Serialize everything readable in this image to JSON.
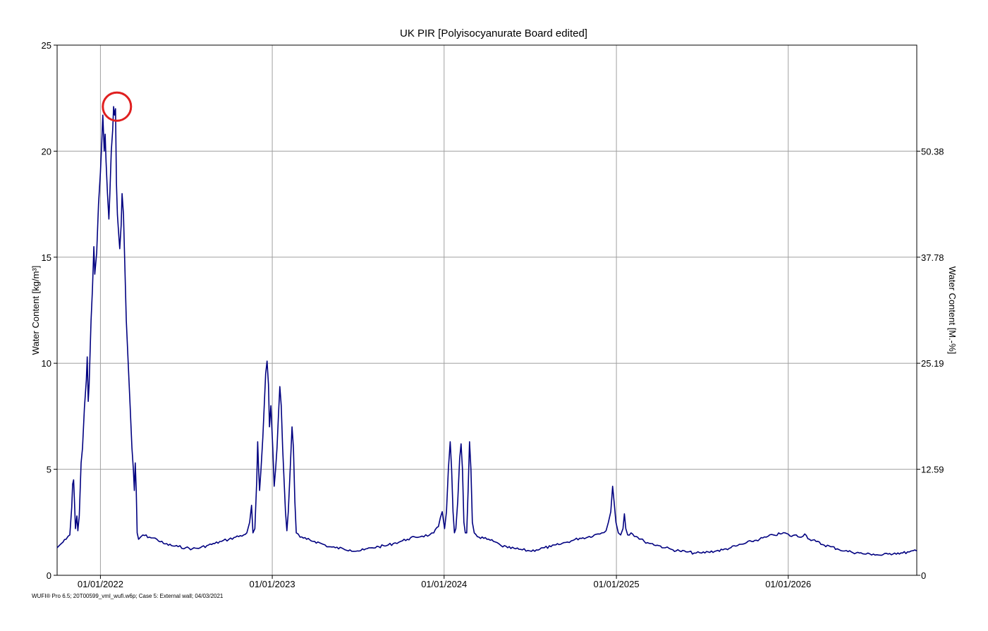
{
  "chart_data": {
    "type": "line",
    "title": "UK PIR [Polyisocyanurate Board edited]",
    "ylabel": "Water Content [kg/m³]",
    "y2label": "Water Content [M.-%]",
    "ylim": [
      0,
      25
    ],
    "yticks": [
      0,
      5,
      10,
      15,
      20,
      25
    ],
    "y2ticks": [
      "0",
      "12.59",
      "25.19",
      "37.78",
      "50.38"
    ],
    "xrange": [
      "2021-10-01",
      "2026-10-01"
    ],
    "xticks": [
      {
        "date": "2022-01-01",
        "label": "01/01/2022"
      },
      {
        "date": "2023-01-01",
        "label": "01/01/2023"
      },
      {
        "date": "2024-01-01",
        "label": "01/01/2024"
      },
      {
        "date": "2025-01-01",
        "label": "01/01/2025"
      },
      {
        "date": "2026-01-01",
        "label": "01/01/2026"
      }
    ],
    "grid": true,
    "line_color": "#000080",
    "annotation": {
      "type": "circle",
      "color": "#e02020",
      "at": {
        "x": "2022-02-05",
        "y": 22.1
      }
    },
    "footer": "WUFI® Pro 6.5; 20T00599_vml_wufi.w6p; Case 5: External wall; 04/03/2021",
    "series": [
      {
        "points": [
          [
            "2021-10-01",
            1.3
          ],
          [
            "2021-10-10",
            1.5
          ],
          [
            "2021-10-20",
            1.7
          ],
          [
            "2021-10-28",
            1.9
          ],
          [
            "2021-11-01",
            3.2
          ],
          [
            "2021-11-03",
            4.3
          ],
          [
            "2021-11-05",
            4.5
          ],
          [
            "2021-11-07",
            3.4
          ],
          [
            "2021-11-09",
            2.2
          ],
          [
            "2021-11-12",
            2.8
          ],
          [
            "2021-11-14",
            2.1
          ],
          [
            "2021-11-17",
            2.8
          ],
          [
            "2021-11-21",
            5.3
          ],
          [
            "2021-11-24",
            6.0
          ],
          [
            "2021-11-28",
            7.9
          ],
          [
            "2021-12-02",
            9.2
          ],
          [
            "2021-12-04",
            10.3
          ],
          [
            "2021-12-06",
            8.2
          ],
          [
            "2021-12-08",
            9.0
          ],
          [
            "2021-12-12",
            12.0
          ],
          [
            "2021-12-15",
            13.5
          ],
          [
            "2021-12-18",
            15.5
          ],
          [
            "2021-12-20",
            14.2
          ],
          [
            "2021-12-24",
            15.2
          ],
          [
            "2021-12-28",
            17.5
          ],
          [
            "2022-01-01",
            19.0
          ],
          [
            "2022-01-04",
            20.5
          ],
          [
            "2022-01-06",
            21.7
          ],
          [
            "2022-01-09",
            20.0
          ],
          [
            "2022-01-11",
            20.8
          ],
          [
            "2022-01-13",
            19.5
          ],
          [
            "2022-01-16",
            18.0
          ],
          [
            "2022-01-19",
            16.8
          ],
          [
            "2022-01-21",
            18.0
          ],
          [
            "2022-01-24",
            20.0
          ],
          [
            "2022-01-27",
            21.0
          ],
          [
            "2022-01-29",
            22.1
          ],
          [
            "2022-01-31",
            21.7
          ],
          [
            "2022-02-02",
            22.0
          ],
          [
            "2022-02-04",
            18.5
          ],
          [
            "2022-02-06",
            17.0
          ],
          [
            "2022-02-09",
            16.0
          ],
          [
            "2022-02-11",
            15.4
          ],
          [
            "2022-02-14",
            16.5
          ],
          [
            "2022-02-16",
            18.0
          ],
          [
            "2022-02-19",
            17.0
          ],
          [
            "2022-02-22",
            14.5
          ],
          [
            "2022-02-25",
            12.0
          ],
          [
            "2022-03-01",
            10.0
          ],
          [
            "2022-03-05",
            8.0
          ],
          [
            "2022-03-09",
            6.0
          ],
          [
            "2022-03-12",
            5.0
          ],
          [
            "2022-03-14",
            4.0
          ],
          [
            "2022-03-16",
            5.3
          ],
          [
            "2022-03-18",
            4.0
          ],
          [
            "2022-03-20",
            2.0
          ],
          [
            "2022-03-23",
            1.7
          ],
          [
            "2022-04-01",
            1.9
          ],
          [
            "2022-04-15",
            1.8
          ],
          [
            "2022-05-01",
            1.7
          ],
          [
            "2022-05-15",
            1.5
          ],
          [
            "2022-06-01",
            1.4
          ],
          [
            "2022-06-15",
            1.35
          ],
          [
            "2022-07-01",
            1.3
          ],
          [
            "2022-07-15",
            1.25
          ],
          [
            "2022-08-01",
            1.3
          ],
          [
            "2022-08-15",
            1.4
          ],
          [
            "2022-09-01",
            1.5
          ],
          [
            "2022-09-15",
            1.6
          ],
          [
            "2022-10-01",
            1.7
          ],
          [
            "2022-10-15",
            1.8
          ],
          [
            "2022-11-01",
            1.9
          ],
          [
            "2022-11-08",
            2.0
          ],
          [
            "2022-11-14",
            2.5
          ],
          [
            "2022-11-18",
            3.3
          ],
          [
            "2022-11-21",
            2.0
          ],
          [
            "2022-11-25",
            2.2
          ],
          [
            "2022-11-29",
            4.5
          ],
          [
            "2022-12-01",
            6.3
          ],
          [
            "2022-12-03",
            5.0
          ],
          [
            "2022-12-05",
            4.0
          ],
          [
            "2022-12-08",
            5.0
          ],
          [
            "2022-12-12",
            6.5
          ],
          [
            "2022-12-15",
            8.0
          ],
          [
            "2022-12-18",
            9.5
          ],
          [
            "2022-12-21",
            10.1
          ],
          [
            "2022-12-24",
            9.0
          ],
          [
            "2022-12-26",
            7.0
          ],
          [
            "2022-12-29",
            8.0
          ],
          [
            "2023-01-02",
            6.0
          ],
          [
            "2023-01-05",
            4.2
          ],
          [
            "2023-01-08",
            5.0
          ],
          [
            "2023-01-11",
            6.0
          ],
          [
            "2023-01-14",
            7.5
          ],
          [
            "2023-01-17",
            8.9
          ],
          [
            "2023-01-20",
            8.0
          ],
          [
            "2023-01-23",
            6.0
          ],
          [
            "2023-01-26",
            4.5
          ],
          [
            "2023-01-29",
            3.0
          ],
          [
            "2023-02-01",
            2.1
          ],
          [
            "2023-02-04",
            3.0
          ],
          [
            "2023-02-08",
            5.0
          ],
          [
            "2023-02-12",
            7.0
          ],
          [
            "2023-02-15",
            6.0
          ],
          [
            "2023-02-18",
            3.5
          ],
          [
            "2023-02-21",
            2.0
          ],
          [
            "2023-03-01",
            1.8
          ],
          [
            "2023-03-15",
            1.7
          ],
          [
            "2023-04-01",
            1.6
          ],
          [
            "2023-04-15",
            1.5
          ],
          [
            "2023-05-01",
            1.35
          ],
          [
            "2023-05-15",
            1.3
          ],
          [
            "2023-06-01",
            1.25
          ],
          [
            "2023-06-15",
            1.2
          ],
          [
            "2023-07-01",
            1.15
          ],
          [
            "2023-07-15",
            1.2
          ],
          [
            "2023-08-01",
            1.3
          ],
          [
            "2023-08-15",
            1.35
          ],
          [
            "2023-09-01",
            1.4
          ],
          [
            "2023-09-15",
            1.5
          ],
          [
            "2023-10-01",
            1.6
          ],
          [
            "2023-10-15",
            1.7
          ],
          [
            "2023-11-01",
            1.8
          ],
          [
            "2023-11-15",
            1.85
          ],
          [
            "2023-12-01",
            1.9
          ],
          [
            "2023-12-10",
            2.0
          ],
          [
            "2023-12-20",
            2.3
          ],
          [
            "2023-12-28",
            3.0
          ],
          [
            "2024-01-02",
            2.2
          ],
          [
            "2024-01-06",
            3.0
          ],
          [
            "2024-01-10",
            5.0
          ],
          [
            "2024-01-14",
            6.3
          ],
          [
            "2024-01-17",
            5.0
          ],
          [
            "2024-01-20",
            3.0
          ],
          [
            "2024-01-23",
            2.0
          ],
          [
            "2024-01-26",
            2.2
          ],
          [
            "2024-01-30",
            3.5
          ],
          [
            "2024-02-03",
            5.5
          ],
          [
            "2024-02-06",
            6.2
          ],
          [
            "2024-02-09",
            5.0
          ],
          [
            "2024-02-12",
            2.5
          ],
          [
            "2024-02-15",
            2.0
          ],
          [
            "2024-02-18",
            2.0
          ],
          [
            "2024-02-21",
            4.0
          ],
          [
            "2024-02-24",
            6.3
          ],
          [
            "2024-02-27",
            5.0
          ],
          [
            "2024-03-01",
            2.5
          ],
          [
            "2024-03-05",
            2.0
          ],
          [
            "2024-03-15",
            1.8
          ],
          [
            "2024-04-01",
            1.7
          ],
          [
            "2024-04-15",
            1.6
          ],
          [
            "2024-05-01",
            1.4
          ],
          [
            "2024-05-15",
            1.3
          ],
          [
            "2024-06-01",
            1.25
          ],
          [
            "2024-06-15",
            1.2
          ],
          [
            "2024-07-01",
            1.15
          ],
          [
            "2024-07-15",
            1.2
          ],
          [
            "2024-08-01",
            1.3
          ],
          [
            "2024-08-15",
            1.35
          ],
          [
            "2024-09-01",
            1.45
          ],
          [
            "2024-09-15",
            1.55
          ],
          [
            "2024-10-01",
            1.65
          ],
          [
            "2024-10-15",
            1.75
          ],
          [
            "2024-11-01",
            1.8
          ],
          [
            "2024-11-15",
            1.9
          ],
          [
            "2024-12-01",
            2.0
          ],
          [
            "2024-12-10",
            2.1
          ],
          [
            "2024-12-15",
            2.5
          ],
          [
            "2024-12-20",
            3.0
          ],
          [
            "2024-12-24",
            4.2
          ],
          [
            "2024-12-27",
            3.5
          ],
          [
            "2024-12-31",
            2.5
          ],
          [
            "2025-01-05",
            2.0
          ],
          [
            "2025-01-10",
            1.9
          ],
          [
            "2025-01-15",
            2.2
          ],
          [
            "2025-01-18",
            2.9
          ],
          [
            "2025-01-21",
            2.2
          ],
          [
            "2025-01-25",
            1.9
          ],
          [
            "2025-02-01",
            2.0
          ],
          [
            "2025-02-15",
            1.8
          ],
          [
            "2025-03-01",
            1.6
          ],
          [
            "2025-03-15",
            1.5
          ],
          [
            "2025-04-01",
            1.4
          ],
          [
            "2025-04-15",
            1.3
          ],
          [
            "2025-05-01",
            1.2
          ],
          [
            "2025-05-15",
            1.15
          ],
          [
            "2025-06-01",
            1.1
          ],
          [
            "2025-06-15",
            1.05
          ],
          [
            "2025-07-01",
            1.05
          ],
          [
            "2025-07-15",
            1.1
          ],
          [
            "2025-08-01",
            1.15
          ],
          [
            "2025-08-15",
            1.2
          ],
          [
            "2025-09-01",
            1.3
          ],
          [
            "2025-09-15",
            1.4
          ],
          [
            "2025-10-01",
            1.5
          ],
          [
            "2025-10-15",
            1.6
          ],
          [
            "2025-11-01",
            1.7
          ],
          [
            "2025-11-15",
            1.8
          ],
          [
            "2025-12-01",
            1.9
          ],
          [
            "2025-12-15",
            1.95
          ],
          [
            "2025-12-25",
            2.0
          ],
          [
            "2026-01-05",
            1.85
          ],
          [
            "2026-01-15",
            1.9
          ],
          [
            "2026-01-25",
            1.8
          ],
          [
            "2026-02-05",
            1.95
          ],
          [
            "2026-02-15",
            1.7
          ],
          [
            "2026-03-01",
            1.6
          ],
          [
            "2026-03-15",
            1.45
          ],
          [
            "2026-04-01",
            1.35
          ],
          [
            "2026-04-15",
            1.25
          ],
          [
            "2026-05-01",
            1.15
          ],
          [
            "2026-05-15",
            1.1
          ],
          [
            "2026-06-01",
            1.05
          ],
          [
            "2026-06-15",
            1.0
          ],
          [
            "2026-07-01",
            1.0
          ],
          [
            "2026-07-15",
            0.95
          ],
          [
            "2026-08-01",
            1.0
          ],
          [
            "2026-08-15",
            1.05
          ],
          [
            "2026-09-01",
            1.05
          ],
          [
            "2026-09-15",
            1.1
          ],
          [
            "2026-10-01",
            1.15
          ]
        ]
      }
    ]
  }
}
